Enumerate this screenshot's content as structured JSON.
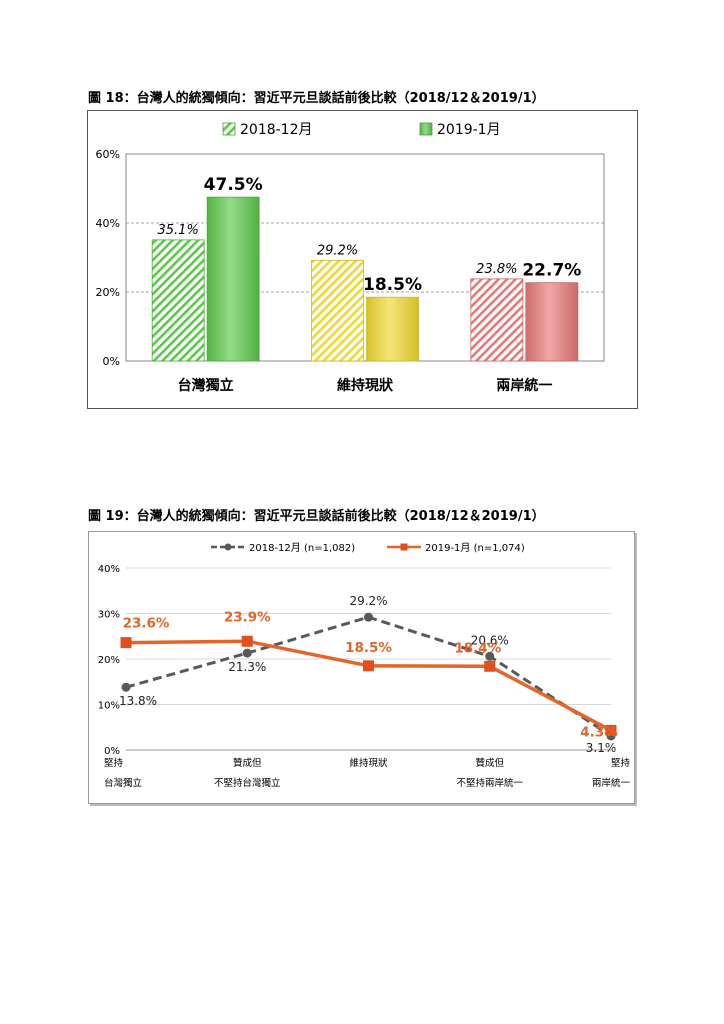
{
  "page": {
    "fig18_caption": "圖 18：台灣人的統獨傾向：習近平元旦談話前後比較（2018/12＆2019/1）",
    "fig19_caption": "圖 19：台灣人的統獨傾向：習近平元旦談話前後比較（2018/12＆2019/1）"
  },
  "chart_data": [
    {
      "type": "bar",
      "title": "圖 18：台灣人的統獨傾向：習近平元旦談話前後比較（2018/12＆2019/1）",
      "categories": [
        "台灣獨立",
        "維持現狀",
        "兩岸統一"
      ],
      "series": [
        {
          "name": "2018-12月",
          "values": [
            35.1,
            29.2,
            23.8
          ],
          "labels": [
            "35.1%",
            "29.2%",
            "23.8%"
          ],
          "style": "hatched"
        },
        {
          "name": "2019-1月",
          "values": [
            47.5,
            18.5,
            22.7
          ],
          "labels": [
            "47.5%",
            "18.5%",
            "22.7%"
          ],
          "style": "solid"
        }
      ],
      "category_colors": [
        "#5cc84a",
        "#f0d830",
        "#e87878"
      ],
      "ylim": [
        0,
        60
      ],
      "yticks": [
        "0%",
        "20%",
        "40%",
        "60%"
      ],
      "grid": true,
      "legend": "top"
    },
    {
      "type": "line",
      "title": "圖 19：台灣人的統獨傾向：習近平元旦談話前後比較（2018/12＆2019/1）",
      "categories": [
        [
          "堅持",
          "台灣獨立"
        ],
        [
          "贊成但",
          "不堅持台灣獨立"
        ],
        [
          "維持現狀"
        ],
        [
          "贊成但",
          "不堅持兩岸統一"
        ],
        [
          "堅持",
          "兩岸統一"
        ]
      ],
      "series": [
        {
          "name": "2018-12月 (n=1,082)",
          "values": [
            13.8,
            21.3,
            29.2,
            20.6,
            3.1
          ],
          "labels": [
            "13.8%",
            "21.3%",
            "29.2%",
            "20.6%",
            "3.1%"
          ],
          "color": "#595959",
          "style": "dashed"
        },
        {
          "name": "2019-1月 (n=1,074)",
          "values": [
            23.6,
            23.9,
            18.5,
            18.4,
            4.3
          ],
          "labels": [
            "23.6%",
            "23.9%",
            "18.5%",
            "18.4%",
            "4.3%"
          ],
          "color": "#e2662a",
          "style": "solid"
        }
      ],
      "ylim": [
        0,
        40
      ],
      "yticks": [
        "0%",
        "10%",
        "20%",
        "30%",
        "40%"
      ],
      "grid": true,
      "legend": "top"
    }
  ]
}
